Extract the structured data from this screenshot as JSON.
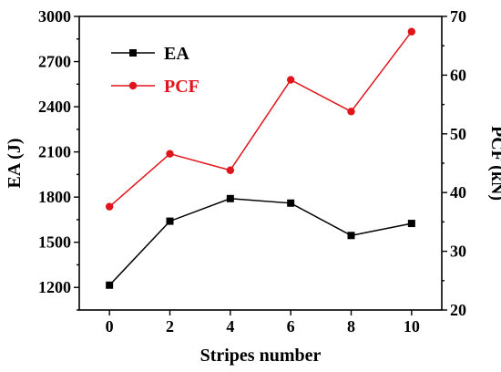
{
  "chart_data": {
    "type": "line",
    "xlabel": "Stripes number",
    "ylabel_left": "EA (J)",
    "ylabel_right": "PCF (kN)",
    "x": [
      0,
      2,
      4,
      6,
      8,
      10
    ],
    "x_ticks": [
      "0",
      "2",
      "4",
      "6",
      "8",
      "10"
    ],
    "xlim": [
      -1,
      11
    ],
    "ylim_left": [
      1050,
      3000
    ],
    "ylim_right": [
      20,
      70
    ],
    "y_ticks_left": [
      "1200",
      "1500",
      "1800",
      "2100",
      "2400",
      "2700",
      "3000"
    ],
    "y_ticks_right": [
      "20",
      "30",
      "40",
      "50",
      "60",
      "70"
    ],
    "legend_position": "top-left",
    "grid": false,
    "series": [
      {
        "name": "EA",
        "axis": "left",
        "color": "#000000",
        "marker": "square",
        "values": [
          1215,
          1640,
          1790,
          1760,
          1545,
          1625
        ]
      },
      {
        "name": "PCF",
        "axis": "right",
        "color": "#e0141b",
        "marker": "circle",
        "values": [
          37.6,
          46.6,
          43.8,
          59.2,
          53.8,
          67.4
        ]
      }
    ]
  }
}
